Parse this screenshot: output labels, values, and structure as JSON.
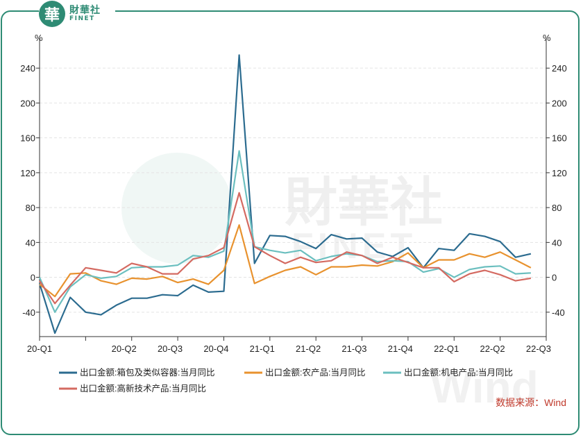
{
  "brand": {
    "logo_char": "華",
    "name_cn": "財華社",
    "name_en": "FINET"
  },
  "source_label": "数据来源：Wind",
  "watermark": {
    "brand_cn": "財華社",
    "brand_en": "FINET",
    "provider": "Wind"
  },
  "colors": {
    "frame": "#2e8b74",
    "series": [
      "#2b6b8f",
      "#e8922e",
      "#6bbfbf",
      "#d46a61"
    ],
    "grid": "#e3e3e3",
    "axis": "#333333",
    "source": "#c0392b"
  },
  "chart_data": {
    "type": "line",
    "title": "",
    "xlabel": "",
    "ylabel": "%",
    "ylabel_right": "%",
    "ylim": [
      -68,
      268
    ],
    "y_ticks": [
      -40,
      0,
      40,
      80,
      120,
      160,
      200,
      240
    ],
    "x_tick_labels": [
      "20-Q1",
      "20-Q2",
      "20-Q3",
      "20-Q4",
      "21-Q1",
      "21-Q2",
      "21-Q3",
      "21-Q4",
      "22-Q1",
      "22-Q2",
      "22-Q3"
    ],
    "x_tick_label_positions": [
      0,
      5.5,
      8.5,
      11.5,
      14.5,
      17.5,
      20.5,
      23.5,
      26.5,
      29.5,
      32.5
    ],
    "x_minor_ticks": [
      0,
      3,
      6,
      9,
      12,
      15,
      18,
      21,
      24,
      27,
      30,
      33
    ],
    "grid": true,
    "legend_position": "bottom",
    "x": [
      0,
      1,
      2,
      3,
      4,
      5,
      6,
      7,
      8,
      9,
      10,
      11,
      12,
      13,
      14,
      15,
      16,
      17,
      18,
      19,
      20,
      21,
      22,
      23,
      24,
      25,
      26,
      27,
      28,
      29,
      30,
      31,
      32,
      33
    ],
    "series": [
      {
        "name": "出口金额:箱包及类似容器:当月同比",
        "values": [
          -7,
          -64,
          -23,
          -40,
          -43,
          -32,
          -24,
          -24,
          -20,
          -21,
          -9,
          -17,
          -16,
          255,
          16,
          48,
          47,
          41,
          33,
          49,
          44,
          45,
          29,
          24,
          34,
          11,
          33,
          31,
          50,
          47,
          41,
          23,
          27,
          null
        ]
      },
      {
        "name": "出口金额:农产品:当月同比",
        "values": [
          -8,
          -22,
          4,
          5,
          -4,
          -8,
          -1,
          -2,
          1,
          -6,
          -2,
          -8,
          8,
          60,
          -7,
          1,
          8,
          12,
          3,
          12,
          12,
          14,
          13,
          18,
          28,
          11,
          20,
          20,
          27,
          23,
          29,
          20,
          11,
          null
        ]
      },
      {
        "name": "出口金额:机电产品:当月同比",
        "values": [
          0,
          -40,
          -11,
          3,
          -1,
          1,
          11,
          12,
          12,
          14,
          25,
          23,
          30,
          145,
          35,
          31,
          28,
          31,
          19,
          24,
          27,
          25,
          18,
          19,
          18,
          6,
          10,
          0,
          9,
          12,
          13,
          4,
          5,
          null
        ]
      },
      {
        "name": "出口金额:高新技术产品:当月同比",
        "values": [
          -4,
          -30,
          -9,
          11,
          8,
          5,
          16,
          12,
          4,
          4,
          21,
          25,
          34,
          97,
          35,
          25,
          16,
          23,
          17,
          19,
          29,
          25,
          16,
          23,
          17,
          11,
          11,
          -5,
          4,
          8,
          3,
          -4,
          -1,
          null
        ]
      }
    ]
  }
}
